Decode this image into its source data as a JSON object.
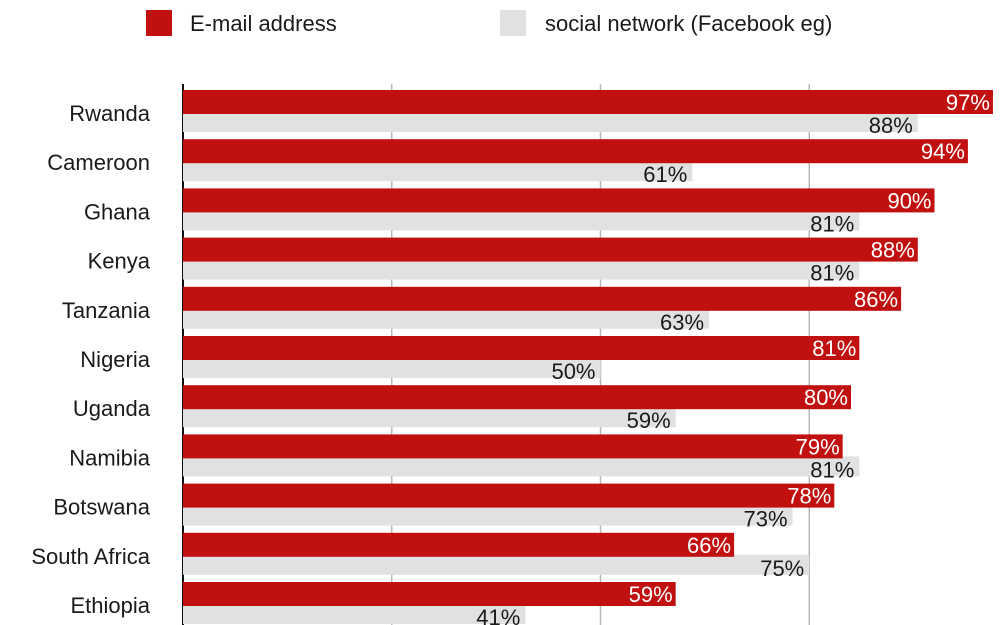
{
  "chart_data": {
    "type": "bar",
    "orientation": "horizontal",
    "categories": [
      "Rwanda",
      "Cameroon",
      "Ghana",
      "Kenya",
      "Tanzania",
      "Nigeria",
      "Uganda",
      "Namibia",
      "Botswana",
      "South Africa",
      "Ethiopia"
    ],
    "series": [
      {
        "name": "E-mail address",
        "color": "#c0100f",
        "values": [
          97,
          94,
          90,
          88,
          86,
          81,
          80,
          79,
          78,
          66,
          59
        ],
        "labels": [
          "97%",
          "94%",
          "90%",
          "88%",
          "86%",
          "81%",
          "80%",
          "79%",
          "78%",
          "66%",
          "59%"
        ]
      },
      {
        "name": "social network (Facebook eg)",
        "color": "#e1e1e1",
        "values": [
          88,
          61,
          81,
          81,
          63,
          50,
          59,
          81,
          73,
          75,
          41
        ],
        "labels": [
          "88%",
          "61%",
          "81%",
          "81%",
          "63%",
          "50%",
          "59%",
          "81%",
          "73%",
          "75%",
          "41%"
        ]
      }
    ],
    "xlim": [
      0,
      100
    ],
    "gridlines_at": [
      25,
      50,
      75
    ],
    "grid": true,
    "legend_position": "top"
  }
}
